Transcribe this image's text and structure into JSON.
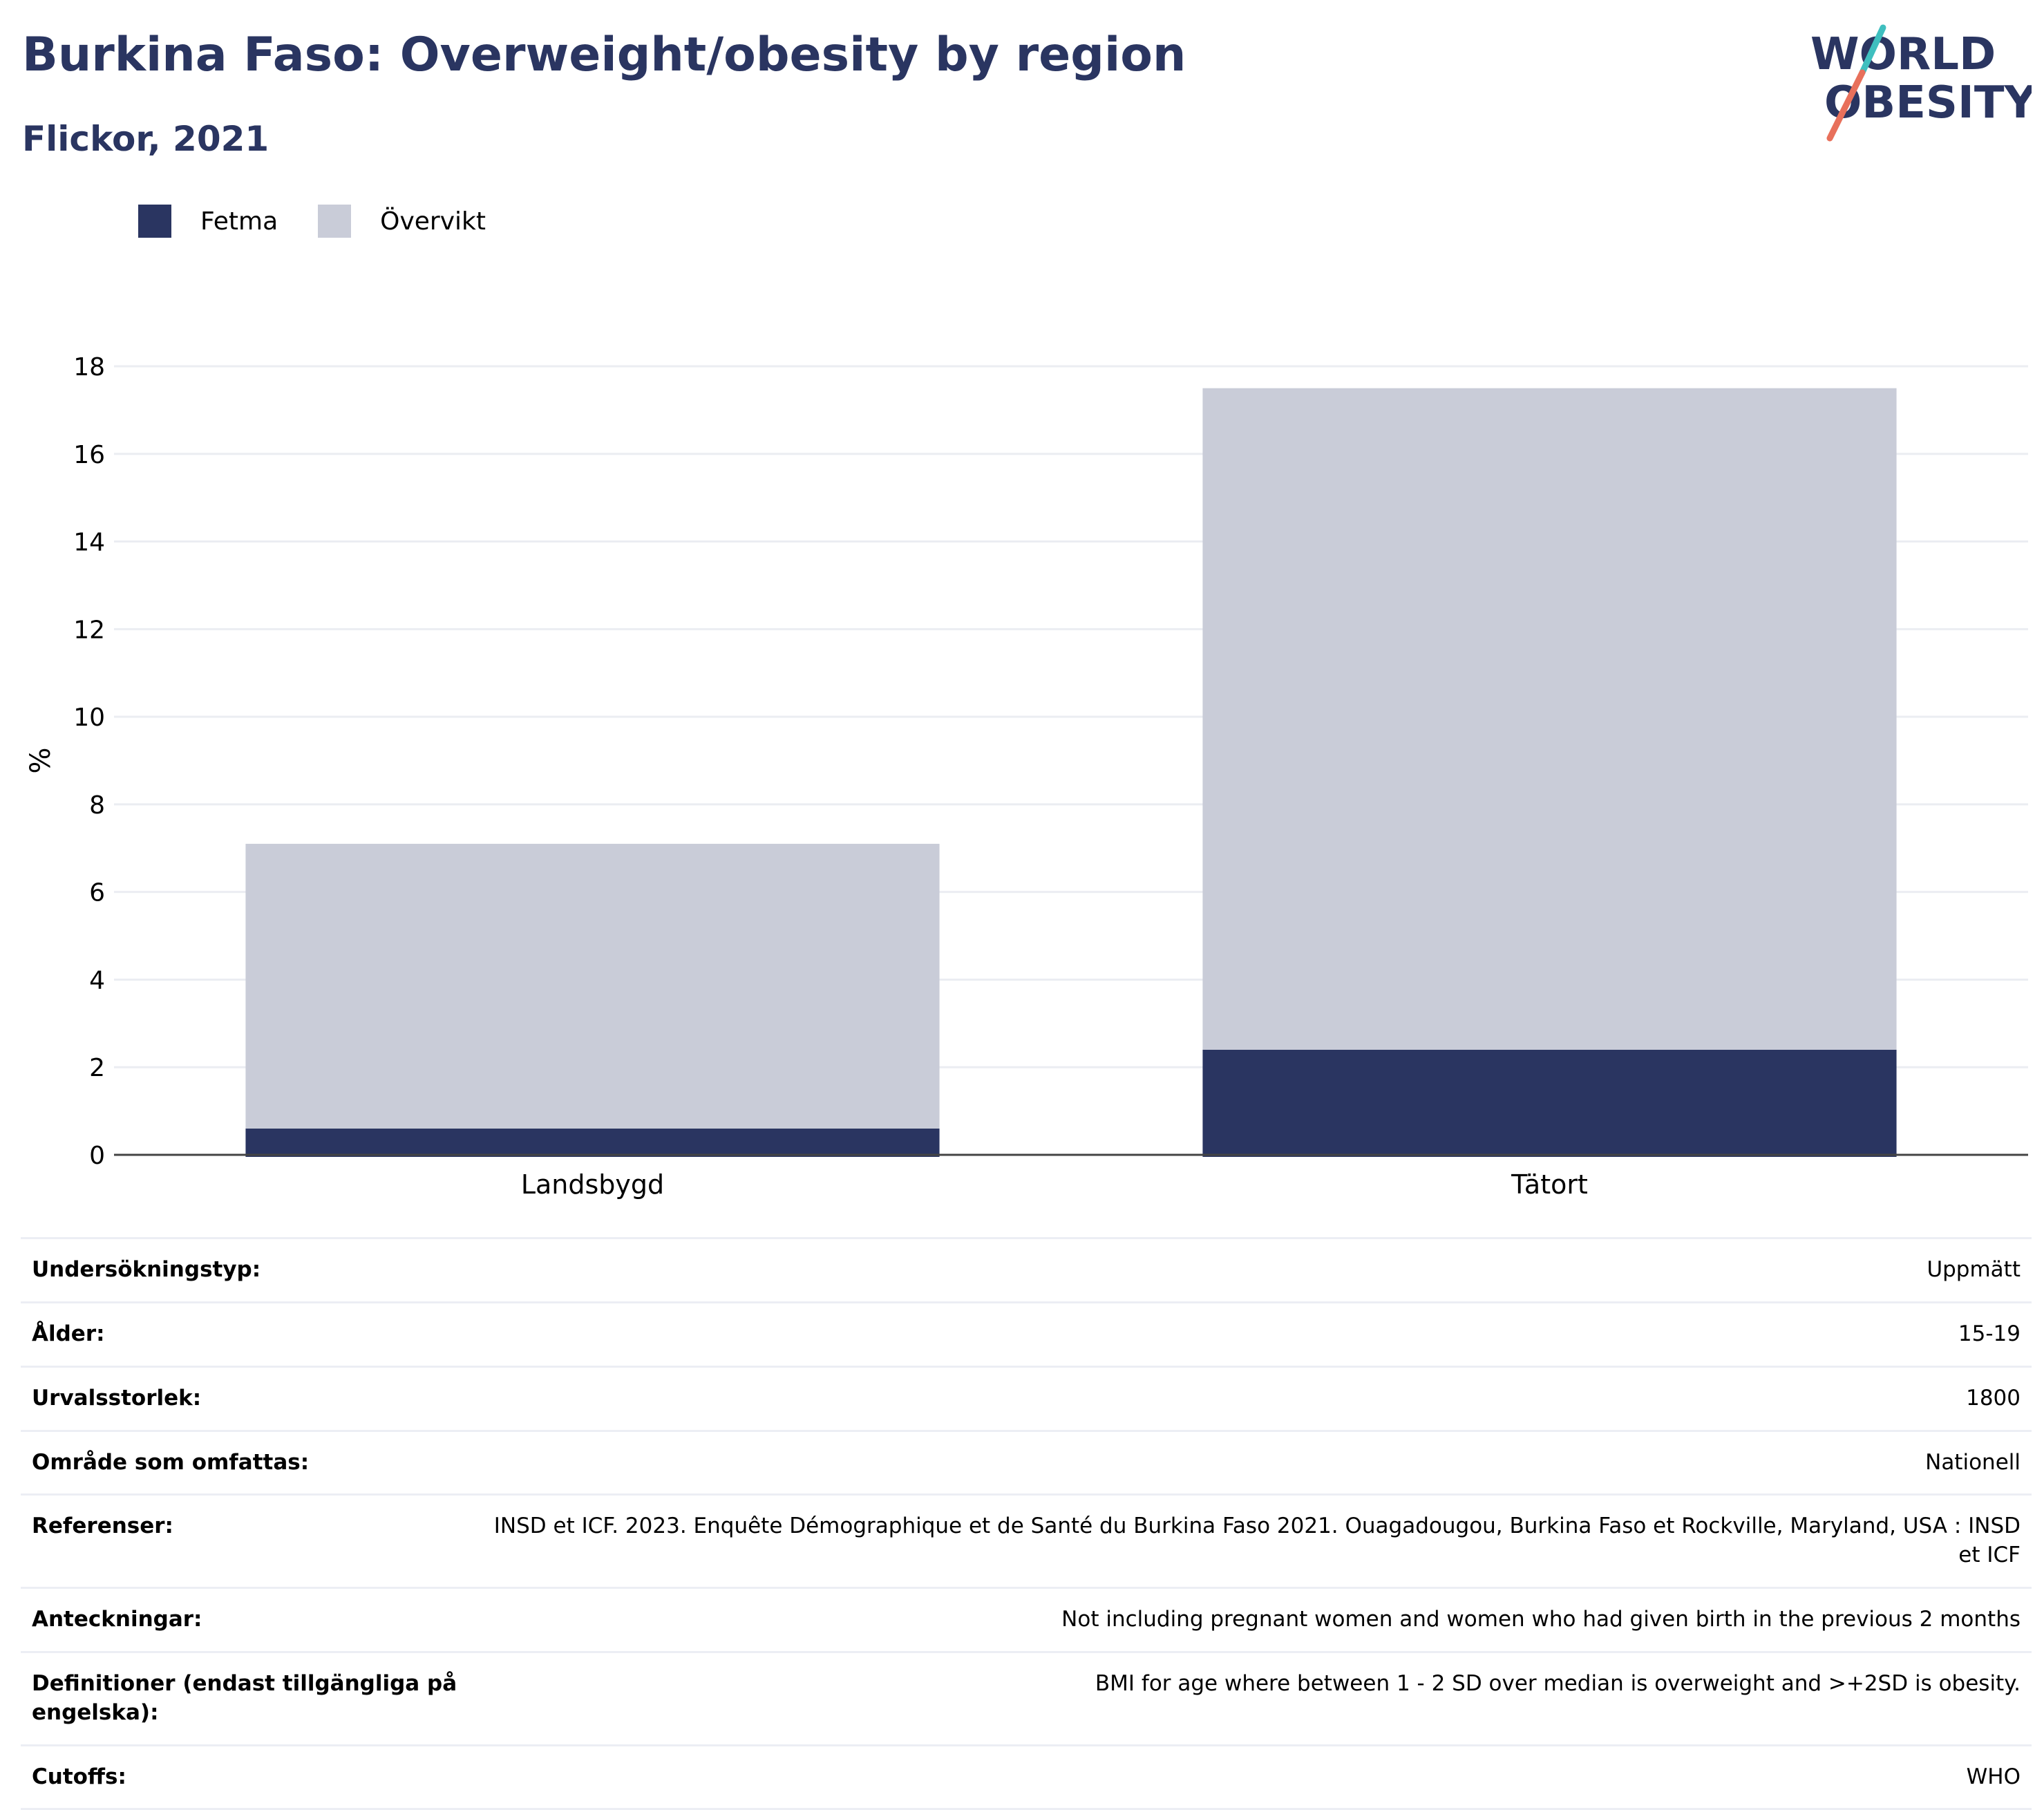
{
  "header": {
    "title": "Burkina Faso: Overweight/obesity by region",
    "subtitle": "Flickor, 2021",
    "logo_line1": "WORLD",
    "logo_line2": "OBESITY"
  },
  "legend": {
    "items": [
      {
        "label": "Fetma",
        "color": "#2a3561"
      },
      {
        "label": "Övervikt",
        "color": "#c9ccd8"
      }
    ]
  },
  "chart_data": {
    "type": "bar",
    "stacked": true,
    "categories": [
      "Landsbygd",
      "Tätort"
    ],
    "series": [
      {
        "name": "Fetma",
        "color": "#2a3561",
        "values": [
          0.6,
          2.4
        ]
      },
      {
        "name": "Övervikt",
        "color": "#c9ccd8",
        "values": [
          6.5,
          15.1
        ]
      }
    ],
    "ylabel": "%",
    "ylim": [
      0,
      18
    ],
    "yticks": [
      0,
      2,
      4,
      6,
      8,
      10,
      12,
      14,
      16,
      18
    ],
    "grid": true,
    "legend_position": "top-left"
  },
  "info": {
    "rows": [
      {
        "key": "Undersökningstyp:",
        "value": "Uppmätt"
      },
      {
        "key": "Ålder:",
        "value": "15-19"
      },
      {
        "key": "Urvalsstorlek:",
        "value": "1800"
      },
      {
        "key": "Område som omfattas:",
        "value": "Nationell"
      },
      {
        "key": "Referenser:",
        "value": "INSD et ICF. 2023. Enquête Démographique et de Santé du Burkina Faso 2021. Ouagadougou, Burkina Faso et Rockville, Maryland, USA : INSD et ICF"
      },
      {
        "key": "Anteckningar:",
        "value": "Not including pregnant women and women who had given birth in the previous 2 months"
      },
      {
        "key": "Definitioner (endast tillgängliga på engelska):",
        "value": "BMI for age where between 1 - 2 SD over median is overweight and >+2SD is obesity."
      },
      {
        "key": "Cutoffs:",
        "value": "WHO"
      }
    ]
  }
}
